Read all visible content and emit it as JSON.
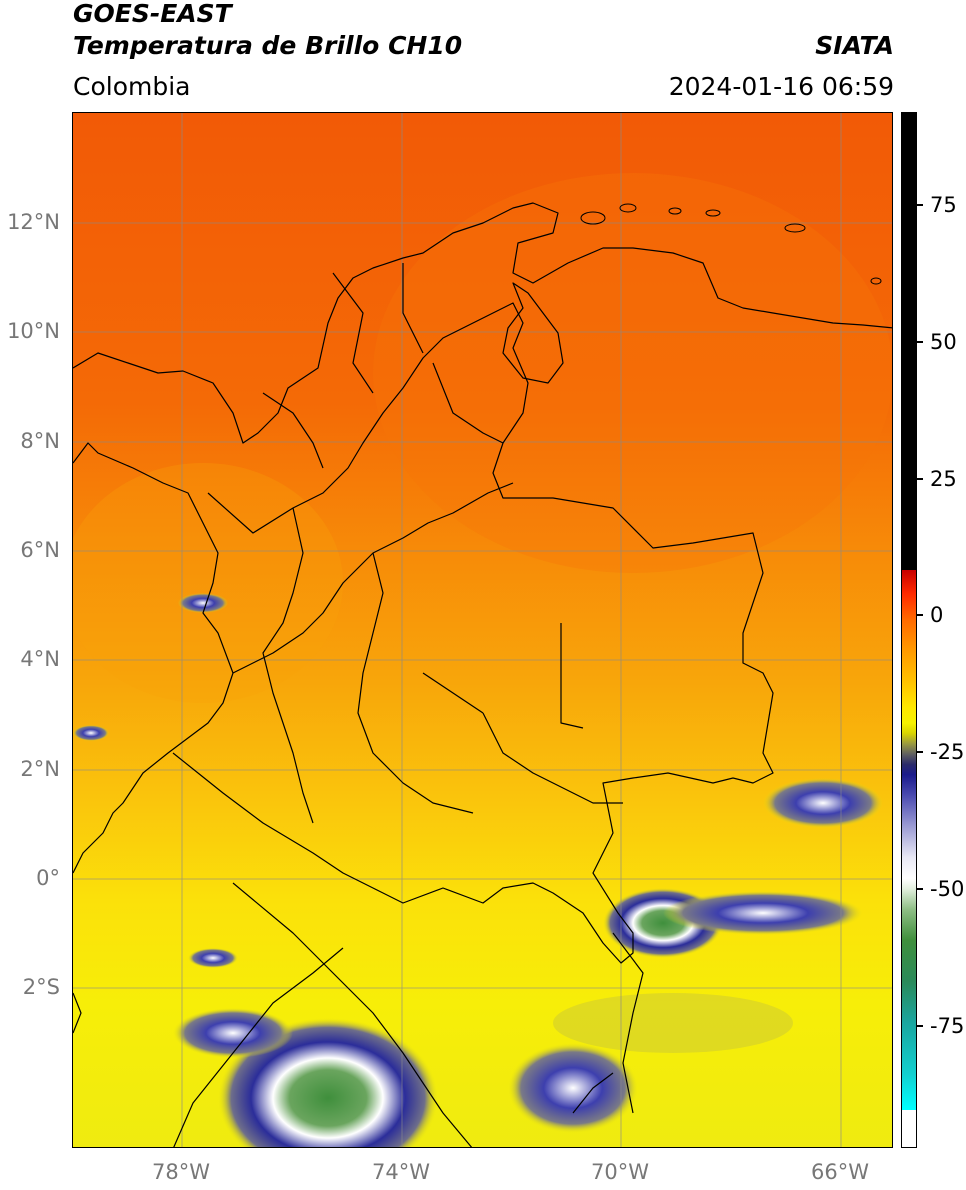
{
  "header": {
    "satellite": "GOES-EAST",
    "product": "Temperatura de Brillo CH10",
    "agency": "SIATA",
    "region": "Colombia",
    "datetime": "2024-01-16 06:59"
  },
  "map": {
    "lat_labels": [
      {
        "text": "12°N"
      },
      {
        "text": "10°N"
      },
      {
        "text": "8°N"
      },
      {
        "text": "6°N"
      },
      {
        "text": "4°N"
      },
      {
        "text": "2°N"
      },
      {
        "text": "0°"
      },
      {
        "text": "2°S"
      }
    ],
    "lon_labels": [
      {
        "text": "78°W"
      },
      {
        "text": "74°W"
      },
      {
        "text": "70°W"
      },
      {
        "text": "66°W"
      }
    ]
  },
  "colorbar": {
    "ticks": [
      "75",
      "50",
      "25",
      "0",
      "-25",
      "-50",
      "-75"
    ]
  }
}
